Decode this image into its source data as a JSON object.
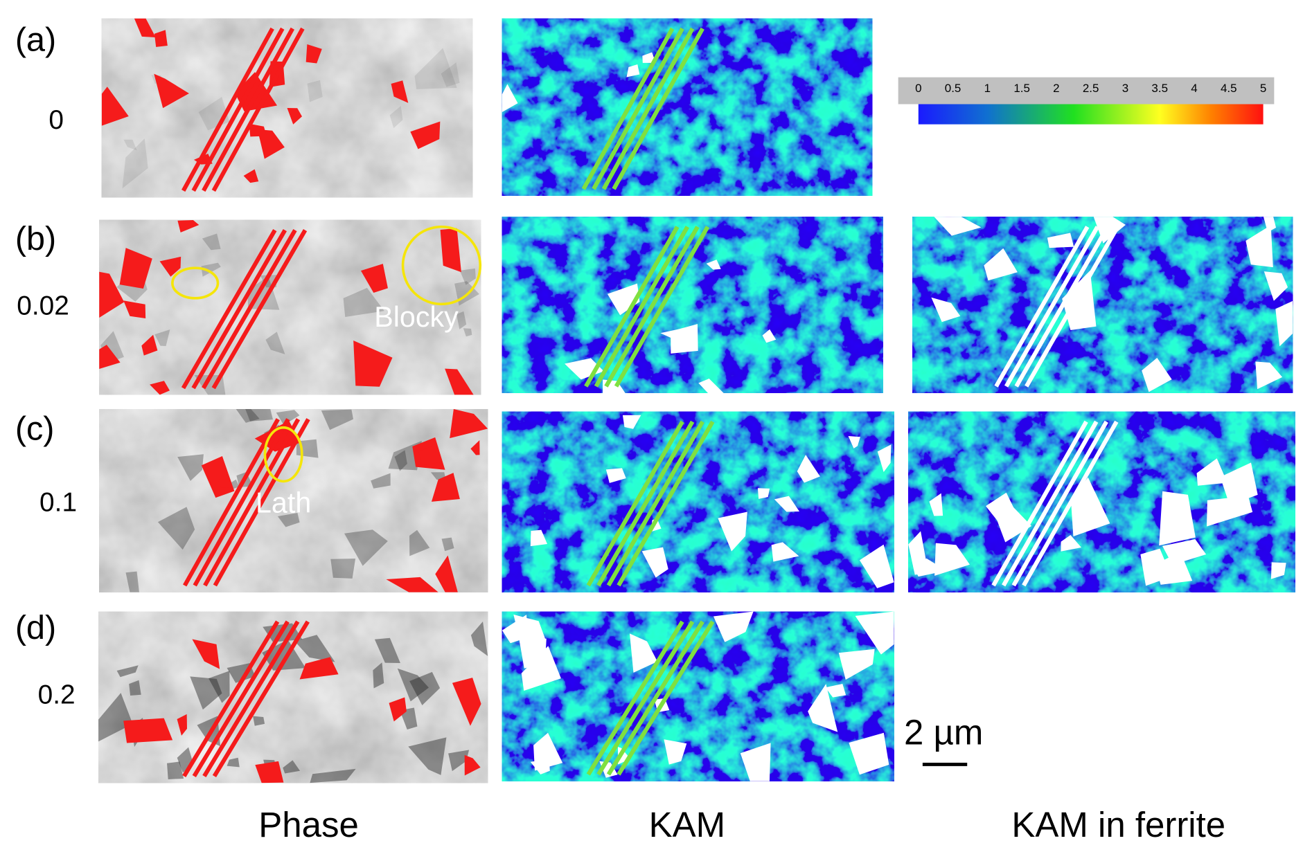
{
  "rows": [
    {
      "label": "(a)",
      "strain": 0
    },
    {
      "label": "(b)",
      "strain": 0.02
    },
    {
      "label": "(c)",
      "strain": 0.1
    },
    {
      "label": "(d)",
      "strain": 0.2
    }
  ],
  "columns": [
    "Phase",
    "KAM",
    "KAM in ferrite"
  ],
  "colorbar": {
    "ticks": [
      0,
      0.5,
      1,
      1.5,
      2,
      2.5,
      3,
      3.5,
      4,
      4.5,
      5
    ]
  },
  "annotations": {
    "blocky": "Blocky",
    "lath": "Lath"
  },
  "scale_bar": "2 µm"
}
